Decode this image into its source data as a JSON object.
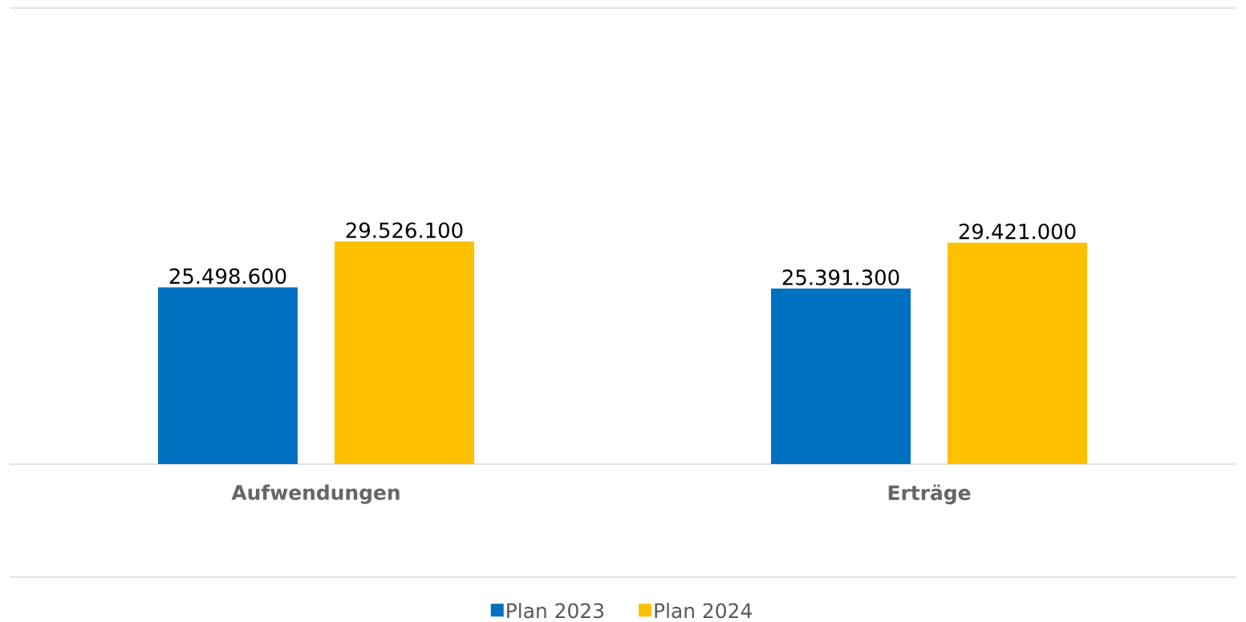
{
  "chart_data": {
    "type": "bar",
    "categories": [
      "Aufwendungen",
      "Erträge"
    ],
    "series": [
      {
        "name": "Plan 2023",
        "color": "#0070c0",
        "values": [
          25498600,
          25391300
        ],
        "value_labels": [
          "25.498.600",
          "25.391.300"
        ]
      },
      {
        "name": "Plan 2024",
        "color": "#ffc000",
        "values": [
          29526100,
          29421000
        ],
        "value_labels": [
          "29.526.100",
          "29.421.000"
        ]
      }
    ],
    "ylim": [
      10000000,
      50000000
    ],
    "tick_labels": "x",
    "legend": "bottom"
  }
}
